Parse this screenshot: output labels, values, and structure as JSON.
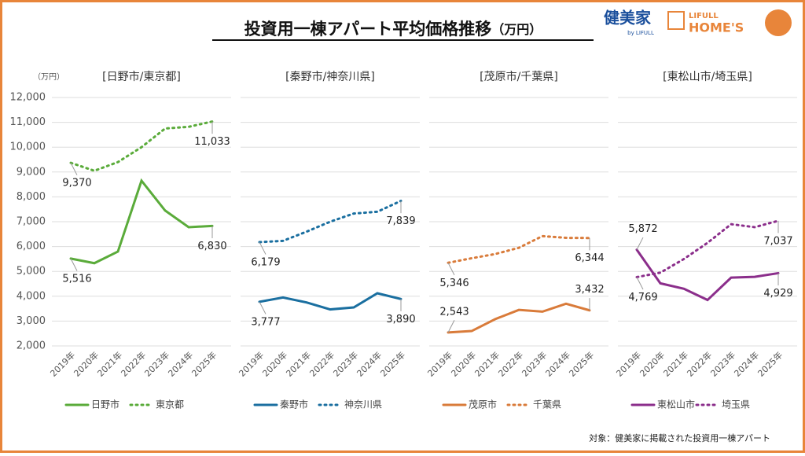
{
  "title": "投資用一棟アパート平均価格推移",
  "title_unit": "（万円）",
  "logos": {
    "brand": "健美家",
    "brand_sub": "by LIFULL",
    "partner_top": "LIFULL",
    "partner": "HOME'S"
  },
  "y_unit": "（万円）",
  "note": "対象：健美家に掲載された投資用一棟アパート",
  "chart_data": [
    {
      "type": "line",
      "title": "[日野市/東京都]",
      "categories": [
        "2019年",
        "2020年",
        "2021年",
        "2022年",
        "2023年",
        "2024年",
        "2025年"
      ],
      "ylim": [
        2000,
        12000
      ],
      "yticks": [
        {
          "value": 2000,
          "label": "2,000"
        },
        {
          "value": 3000,
          "label": "3,000"
        },
        {
          "value": 4000,
          "label": "4,000"
        },
        {
          "value": 5000,
          "label": "5,000"
        },
        {
          "value": 6000,
          "label": "6,000"
        },
        {
          "value": 7000,
          "label": "7,000"
        },
        {
          "value": 8000,
          "label": "8,000"
        },
        {
          "value": 9000,
          "label": "9,000"
        },
        {
          "value": 10000,
          "label": "10,000"
        },
        {
          "value": 11000,
          "label": "11,000"
        },
        {
          "value": 12000,
          "label": "12,000"
        }
      ],
      "grid": true,
      "series": [
        {
          "name": "日野市",
          "color": "#5aab3a",
          "style": "solid",
          "values": [
            5516,
            5330,
            5800,
            8650,
            7450,
            6780,
            6830
          ],
          "value_labels": [
            "5,516",
            null,
            null,
            null,
            null,
            null,
            "6,830"
          ]
        },
        {
          "name": "東京都",
          "color": "#5aab3a",
          "style": "dotted",
          "values": [
            9370,
            9050,
            9400,
            10000,
            10750,
            10820,
            11033
          ],
          "value_labels": [
            "9,370",
            null,
            null,
            null,
            null,
            null,
            "11,033"
          ]
        }
      ]
    },
    {
      "type": "line",
      "title": "[秦野市/神奈川県]",
      "categories": [
        "2019年",
        "2020年",
        "2021年",
        "2022年",
        "2023年",
        "2024年",
        "2025年"
      ],
      "ylim": [
        2000,
        12000
      ],
      "yticks": [
        2000,
        3000,
        4000,
        5000,
        6000,
        7000,
        8000,
        9000,
        10000,
        11000,
        12000
      ],
      "grid": true,
      "series": [
        {
          "name": "秦野市",
          "color": "#1a6fa0",
          "style": "solid",
          "values": [
            3777,
            3950,
            3750,
            3470,
            3550,
            4120,
            3890
          ],
          "value_labels": [
            "3,777",
            null,
            null,
            null,
            null,
            null,
            "3,890"
          ]
        },
        {
          "name": "神奈川県",
          "color": "#1a6fa0",
          "style": "dotted",
          "values": [
            6179,
            6230,
            6600,
            7000,
            7330,
            7400,
            7839
          ],
          "value_labels": [
            "6,179",
            null,
            null,
            null,
            null,
            null,
            "7,839"
          ]
        }
      ]
    },
    {
      "type": "line",
      "title": "[茂原市/千葉県]",
      "categories": [
        "2019年",
        "2020年",
        "2021年",
        "2022年",
        "2023年",
        "2024年",
        "2025年"
      ],
      "ylim": [
        2000,
        12000
      ],
      "yticks": [
        2000,
        3000,
        4000,
        5000,
        6000,
        7000,
        8000,
        9000,
        10000,
        11000,
        12000
      ],
      "grid": true,
      "series": [
        {
          "name": "茂原市",
          "color": "#d97b3a",
          "style": "solid",
          "values": [
            2543,
            2600,
            3080,
            3450,
            3380,
            3700,
            3432
          ],
          "value_labels": [
            "2,543",
            null,
            null,
            null,
            null,
            null,
            "3,432"
          ]
        },
        {
          "name": "千葉県",
          "color": "#d97b3a",
          "style": "dotted",
          "values": [
            5346,
            5530,
            5700,
            5950,
            6420,
            6350,
            6344
          ],
          "value_labels": [
            "5,346",
            null,
            null,
            null,
            null,
            null,
            "6,344"
          ]
        }
      ]
    },
    {
      "type": "line",
      "title": "[東松山市/埼玉県]",
      "categories": [
        "2019年",
        "2020年",
        "2021年",
        "2022年",
        "2023年",
        "2024年",
        "2025年"
      ],
      "ylim": [
        2000,
        12000
      ],
      "yticks": [
        2000,
        3000,
        4000,
        5000,
        6000,
        7000,
        8000,
        9000,
        10000,
        11000,
        12000
      ],
      "grid": true,
      "series": [
        {
          "name": "東松山市",
          "color": "#8b2e8b",
          "style": "solid",
          "values": [
            5872,
            4520,
            4300,
            3850,
            4750,
            4780,
            4929
          ],
          "value_labels": [
            "5,872",
            null,
            null,
            null,
            null,
            null,
            "4,929"
          ]
        },
        {
          "name": "埼玉県",
          "color": "#8b2e8b",
          "style": "dotted",
          "values": [
            4769,
            4950,
            5500,
            6150,
            6900,
            6780,
            7037
          ],
          "value_labels": [
            "4,769",
            null,
            null,
            null,
            null,
            null,
            "7,037"
          ]
        }
      ]
    }
  ]
}
